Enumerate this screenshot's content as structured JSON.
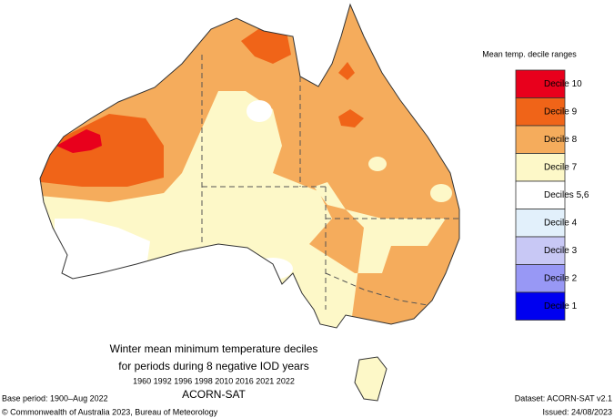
{
  "legend": {
    "title": "Mean temp. decile ranges",
    "items": [
      {
        "label": "Decile 10",
        "color": "#e8001c"
      },
      {
        "label": "Decile 9",
        "color": "#f06418"
      },
      {
        "label": "Decile 8",
        "color": "#f5ac5c"
      },
      {
        "label": "Decile 7",
        "color": "#fdf8c8"
      },
      {
        "label": "Deciles 5,6",
        "color": "#ffffff"
      },
      {
        "label": "Decile 4",
        "color": "#e2f0fb"
      },
      {
        "label": "Decile 3",
        "color": "#c8c8f5"
      },
      {
        "label": "Decile 2",
        "color": "#9898f5"
      },
      {
        "label": "Decile 1",
        "color": "#0000f0"
      }
    ]
  },
  "map_title": {
    "lines": [
      "Winter mean minimum temperature deciles",
      "for periods during 8 negative IOD years"
    ],
    "years": "1960 1992 1996 1998 2010 2016 2021 2022",
    "dataset_name": "ACORN-SAT"
  },
  "footer": {
    "base_period": "Base period: 1900–Aug 2022",
    "copyright": "© Commonwealth of Australia 2023, Bureau of Meteorology",
    "dataset": "Dataset: ACORN-SAT v2.1",
    "issued": "Issued: 24/08/2023"
  }
}
